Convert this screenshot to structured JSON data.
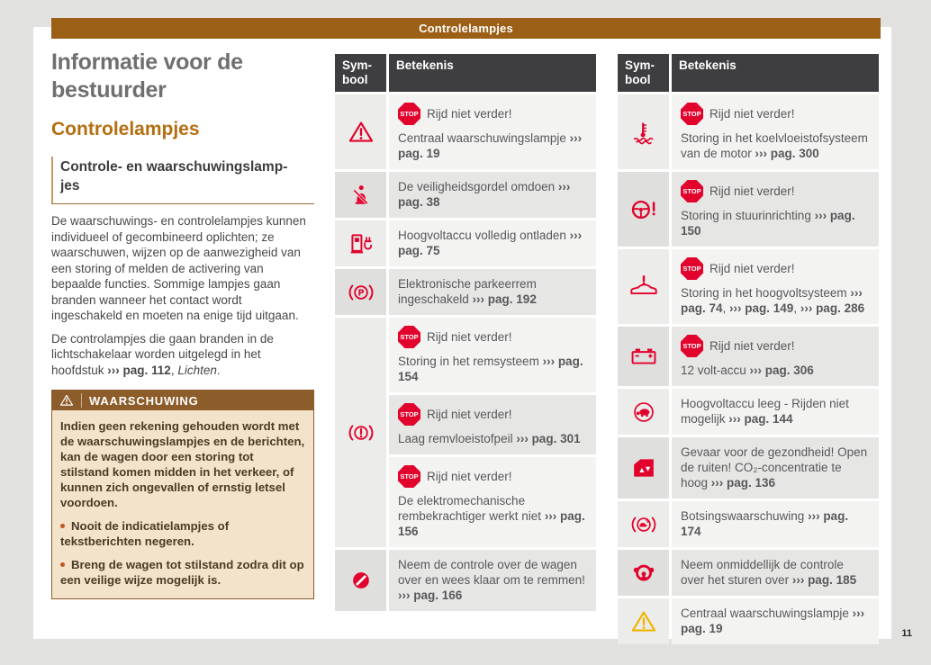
{
  "header": {
    "title": "Controlelampjes"
  },
  "page_number": "11",
  "stop_badge_label": "STOP",
  "left_column": {
    "title": "Informatie voor de bestuurder",
    "section_heading": "Controlelampjes",
    "subsection_heading": "Controle- en waarschuwingslamp­jes",
    "paragraphs": [
      {
        "parts": [
          {
            "t": "De waarschuwings- en controlelampjes kunnen individueel of gecombineerd oplichten; ze waarschuwen, wijzen op de aanwezigheid van een storing of melden de activering van bepaalde functies. Sommige lampjes gaan branden wanneer het contact wordt ingeschakeld en moeten na enige tijd uitgaan."
          }
        ]
      },
      {
        "parts": [
          {
            "t": "De controlampjes die gaan branden in de lichtschakelaar worden uitgelegd in het hoofdstuk "
          },
          {
            "t": "››› pag. 112",
            "b": true
          },
          {
            "t": ", "
          },
          {
            "t": "Lichten",
            "i": true
          },
          {
            "t": "."
          }
        ]
      }
    ],
    "warning": {
      "label": "WAARSCHUWING",
      "icon": "warning-triangle-icon",
      "body": "Indien geen rekening gehouden wordt met de waarschuwingslampjes en de berichten, kan de wagen door een storing tot stilstand komen midden in het verkeer, of kunnen zich ongevallen of ernstig letsel voordoen.",
      "bullets": [
        "Nooit de indicatielampjes of tekstberichten negeren.",
        "Breng de wagen tot stilstand zodra dit op een veilige wijze mogelijk is."
      ]
    }
  },
  "tables": [
    {
      "header": {
        "symbol": "Sym-bool",
        "meaning": "Betekenis"
      },
      "rows": [
        {
          "icon": "warning-triangle-icon",
          "icon_color": "red",
          "shade": "light",
          "blocks": [
            {
              "stop": true,
              "heading": "Rijd niet verder!",
              "parts": [
                {
                  "t": "Centraal waarschuwingslampje "
                },
                {
                  "t": "››› pag. 19",
                  "b": true
                }
              ]
            }
          ]
        },
        {
          "icon": "seatbelt-icon",
          "icon_color": "red",
          "shade": "dark",
          "blocks": [
            {
              "parts": [
                {
                  "t": "De veiligheidsgordel omdoen "
                },
                {
                  "t": "››› pag. 38",
                  "b": true
                }
              ]
            }
          ]
        },
        {
          "icon": "charging-station-icon",
          "icon_color": "red",
          "shade": "light",
          "blocks": [
            {
              "parts": [
                {
                  "t": "Hoogvoltaccu volledig ontladen "
                },
                {
                  "t": "››› pag. 75",
                  "b": true
                }
              ]
            }
          ]
        },
        {
          "icon": "parking-brake-icon",
          "icon_color": "red",
          "shade": "dark",
          "blocks": [
            {
              "parts": [
                {
                  "t": "Elektronische parkeerrem ingeschakeld "
                },
                {
                  "t": "››› pag. 192",
                  "b": true
                }
              ]
            }
          ]
        },
        {
          "icon": "brake-warning-icon",
          "icon_color": "red",
          "shade": "light",
          "block_shades": [
            "light",
            "dark",
            "light"
          ],
          "blocks": [
            {
              "stop": true,
              "heading": "Rijd niet verder!",
              "parts": [
                {
                  "t": "Storing in het remsysteem "
                },
                {
                  "t": "››› pag. 154",
                  "b": true
                }
              ]
            },
            {
              "stop": true,
              "heading": "Rijd niet verder!",
              "parts": [
                {
                  "t": "Laag remvloeistofpeil "
                },
                {
                  "t": "››› pag. 301",
                  "b": true
                }
              ]
            },
            {
              "stop": true,
              "heading": "Rijd niet verder!",
              "parts": [
                {
                  "t": "De elektromechanische rembekrachtiger werkt niet "
                },
                {
                  "t": "››› pag. 156",
                  "b": true
                }
              ]
            }
          ]
        },
        {
          "icon": "steering-takeover-icon",
          "icon_color": "red",
          "shade": "dark",
          "blocks": [
            {
              "parts": [
                {
                  "t": "Neem de controle over de wagen over en wees klaar om te remmen! "
                },
                {
                  "t": "››› pag. 166",
                  "b": true
                }
              ]
            }
          ]
        }
      ]
    },
    {
      "header": {
        "symbol": "Sym-bool",
        "meaning": "Betekenis"
      },
      "rows": [
        {
          "icon": "coolant-icon",
          "icon_color": "red",
          "shade": "light",
          "blocks": [
            {
              "stop": true,
              "heading": "Rijd niet verder!",
              "parts": [
                {
                  "t": "Storing in het koelvloeistofsysteem van de motor "
                },
                {
                  "t": "››› pag. 300",
                  "b": true
                }
              ]
            }
          ]
        },
        {
          "icon": "steering-fault-icon",
          "icon_color": "red",
          "shade": "dark",
          "blocks": [
            {
              "stop": true,
              "heading": "Rijd niet verder!",
              "parts": [
                {
                  "t": "Storing in stuurinrichting "
                },
                {
                  "t": "››› pag. 150",
                  "b": true
                }
              ]
            }
          ]
        },
        {
          "icon": "car-fault-icon",
          "icon_color": "red",
          "shade": "light",
          "blocks": [
            {
              "stop": true,
              "heading": "Rijd niet verder!",
              "parts": [
                {
                  "t": "Storing in het hoogvoltsysteem "
                },
                {
                  "t": "››› pag. 74",
                  "b": true
                },
                {
                  "t": ", "
                },
                {
                  "t": "››› pag. 149",
                  "b": true
                },
                {
                  "t": ", "
                },
                {
                  "t": "››› pag. 286",
                  "b": true
                }
              ]
            }
          ]
        },
        {
          "icon": "battery-icon",
          "icon_color": "red",
          "shade": "dark",
          "blocks": [
            {
              "stop": true,
              "heading": "Rijd niet verder!",
              "parts": [
                {
                  "t": "12 volt-accu "
                },
                {
                  "t": "››› pag. 306",
                  "b": true
                }
              ]
            }
          ]
        },
        {
          "icon": "turtle-icon",
          "icon_color": "red",
          "shade": "light",
          "blocks": [
            {
              "parts": [
                {
                  "t": "Hoogvoltaccu leeg - Rijden niet mogelijk "
                },
                {
                  "t": "››› pag. 144",
                  "b": true
                }
              ]
            }
          ]
        },
        {
          "icon": "co2-window-icon",
          "icon_color": "red",
          "shade": "dark",
          "blocks": [
            {
              "parts": [
                {
                  "t": "Gevaar voor de gezondheid! Open de ruiten! CO₂-concentratie te hoog "
                },
                {
                  "t": "››› pag. 136",
                  "b": true
                }
              ]
            }
          ]
        },
        {
          "icon": "collision-warning-icon",
          "icon_color": "red",
          "shade": "light",
          "blocks": [
            {
              "parts": [
                {
                  "t": "Botsingswaarschuwing "
                },
                {
                  "t": "››› pag. 174",
                  "b": true
                }
              ]
            }
          ]
        },
        {
          "icon": "hands-steering-icon",
          "icon_color": "red",
          "shade": "dark",
          "blocks": [
            {
              "parts": [
                {
                  "t": "Neem onmiddellijk de controle over het sturen over "
                },
                {
                  "t": "››› pag. 185",
                  "b": true
                }
              ]
            }
          ]
        },
        {
          "icon": "warning-triangle-icon",
          "icon_color": "yellow",
          "shade": "light",
          "blocks": [
            {
              "parts": [
                {
                  "t": "Centraal waarschuwingslampje "
                },
                {
                  "t": "››› pag. 19",
                  "b": true
                }
              ]
            }
          ]
        }
      ]
    }
  ]
}
